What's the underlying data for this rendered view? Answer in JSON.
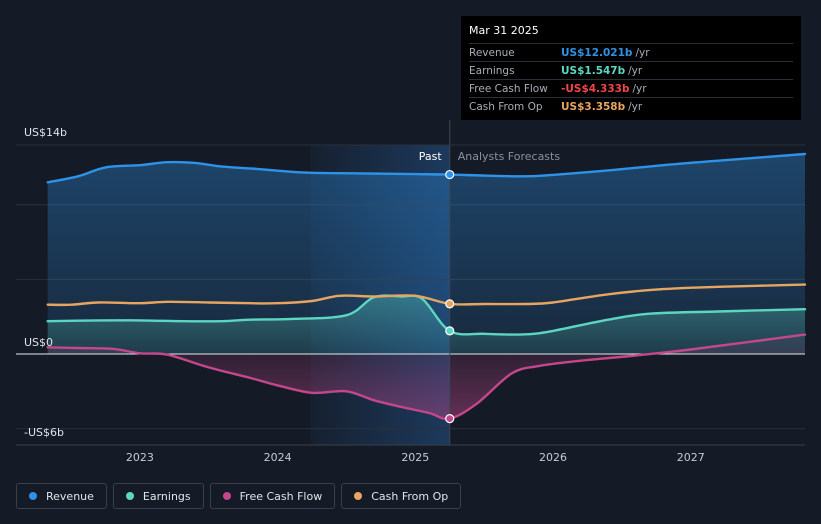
{
  "chart_data": {
    "type": "line",
    "y_axis": {
      "min": -6,
      "max": 14,
      "unit": "US$ billions",
      "top_label": "US$14b",
      "zero_label": "US$0",
      "bottom_label": "-US$6b"
    },
    "x_ticks": [
      {
        "label": "2023",
        "x": 2023.0
      },
      {
        "label": "2024",
        "x": 2024.0
      },
      {
        "label": "2025",
        "x": 2025.0
      },
      {
        "label": "2026",
        "x": 2026.0
      },
      {
        "label": "2027",
        "x": 2027.0
      }
    ],
    "x_range": [
      2022.1,
      2027.83
    ],
    "past_label": "Past",
    "forecast_label": "Analysts Forecasts",
    "divider_x": 2025.25,
    "shaded_start_x": 2024.24,
    "series": [
      {
        "name": "Revenue",
        "key": "revenue",
        "color": "#2e93e8",
        "fill": true,
        "points": [
          [
            2022.33,
            11.5
          ],
          [
            2022.55,
            11.9
          ],
          [
            2022.75,
            12.5
          ],
          [
            2023.0,
            12.65
          ],
          [
            2023.2,
            12.85
          ],
          [
            2023.4,
            12.8
          ],
          [
            2023.6,
            12.55
          ],
          [
            2023.85,
            12.4
          ],
          [
            2024.2,
            12.15
          ],
          [
            2024.6,
            12.1
          ],
          [
            2025.0,
            12.05
          ],
          [
            2025.25,
            12.02
          ],
          [
            2025.5,
            11.95
          ],
          [
            2025.8,
            11.9
          ],
          [
            2026.0,
            12.0
          ],
          [
            2026.4,
            12.3
          ],
          [
            2026.8,
            12.65
          ],
          [
            2027.2,
            12.95
          ],
          [
            2027.83,
            13.4
          ]
        ]
      },
      {
        "name": "Earnings",
        "key": "earnings",
        "color": "#5dd6c1",
        "fill": true,
        "points": [
          [
            2022.33,
            2.2
          ],
          [
            2022.7,
            2.25
          ],
          [
            2023.0,
            2.25
          ],
          [
            2023.3,
            2.2
          ],
          [
            2023.6,
            2.2
          ],
          [
            2023.8,
            2.3
          ],
          [
            2024.1,
            2.35
          ],
          [
            2024.5,
            2.6
          ],
          [
            2024.7,
            3.8
          ],
          [
            2024.9,
            3.85
          ],
          [
            2025.05,
            3.7
          ],
          [
            2025.25,
            1.55
          ],
          [
            2025.5,
            1.35
          ],
          [
            2025.8,
            1.32
          ],
          [
            2026.0,
            1.55
          ],
          [
            2026.4,
            2.3
          ],
          [
            2026.7,
            2.7
          ],
          [
            2027.2,
            2.85
          ],
          [
            2027.83,
            3.0
          ]
        ]
      },
      {
        "name": "Free Cash Flow",
        "key": "fcf",
        "color": "#c4478b",
        "fill": true,
        "points": [
          [
            2022.33,
            0.45
          ],
          [
            2022.55,
            0.4
          ],
          [
            2022.8,
            0.35
          ],
          [
            2023.0,
            0.05
          ],
          [
            2023.2,
            -0.05
          ],
          [
            2023.5,
            -0.9
          ],
          [
            2023.8,
            -1.6
          ],
          [
            2024.0,
            -2.1
          ],
          [
            2024.25,
            -2.6
          ],
          [
            2024.5,
            -2.5
          ],
          [
            2024.7,
            -3.1
          ],
          [
            2024.9,
            -3.55
          ],
          [
            2025.1,
            -3.95
          ],
          [
            2025.25,
            -4.33
          ],
          [
            2025.45,
            -3.3
          ],
          [
            2025.7,
            -1.3
          ],
          [
            2025.9,
            -0.8
          ],
          [
            2026.2,
            -0.45
          ],
          [
            2026.6,
            -0.1
          ],
          [
            2027.0,
            0.3
          ],
          [
            2027.83,
            1.3
          ]
        ]
      },
      {
        "name": "Cash From Op",
        "key": "cfo",
        "color": "#e7a560",
        "fill": false,
        "points": [
          [
            2022.33,
            3.3
          ],
          [
            2022.5,
            3.3
          ],
          [
            2022.7,
            3.45
          ],
          [
            2023.0,
            3.4
          ],
          [
            2023.2,
            3.5
          ],
          [
            2023.5,
            3.45
          ],
          [
            2023.8,
            3.4
          ],
          [
            2024.0,
            3.4
          ],
          [
            2024.25,
            3.55
          ],
          [
            2024.45,
            3.9
          ],
          [
            2024.7,
            3.85
          ],
          [
            2025.0,
            3.9
          ],
          [
            2025.25,
            3.36
          ],
          [
            2025.5,
            3.35
          ],
          [
            2025.8,
            3.35
          ],
          [
            2026.0,
            3.45
          ],
          [
            2026.4,
            4.0
          ],
          [
            2026.8,
            4.35
          ],
          [
            2027.2,
            4.5
          ],
          [
            2027.83,
            4.65
          ]
        ]
      }
    ]
  },
  "tooltip": {
    "date": "Mar 31 2025",
    "rows": [
      {
        "label": "Revenue",
        "value": "US$12.021b",
        "unit": "/yr",
        "color": "#2e93e8"
      },
      {
        "label": "Earnings",
        "value": "US$1.547b",
        "unit": "/yr",
        "color": "#5dd6c1"
      },
      {
        "label": "Free Cash Flow",
        "value": "-US$4.333b",
        "unit": "/yr",
        "color": "#f0464b"
      },
      {
        "label": "Cash From Op",
        "value": "US$3.358b",
        "unit": "/yr",
        "color": "#e7a560"
      }
    ]
  },
  "legend": [
    {
      "label": "Revenue",
      "color": "#2e93e8"
    },
    {
      "label": "Earnings",
      "color": "#5dd6c1"
    },
    {
      "label": "Free Cash Flow",
      "color": "#c4478b"
    },
    {
      "label": "Cash From Op",
      "color": "#e7a560"
    }
  ]
}
